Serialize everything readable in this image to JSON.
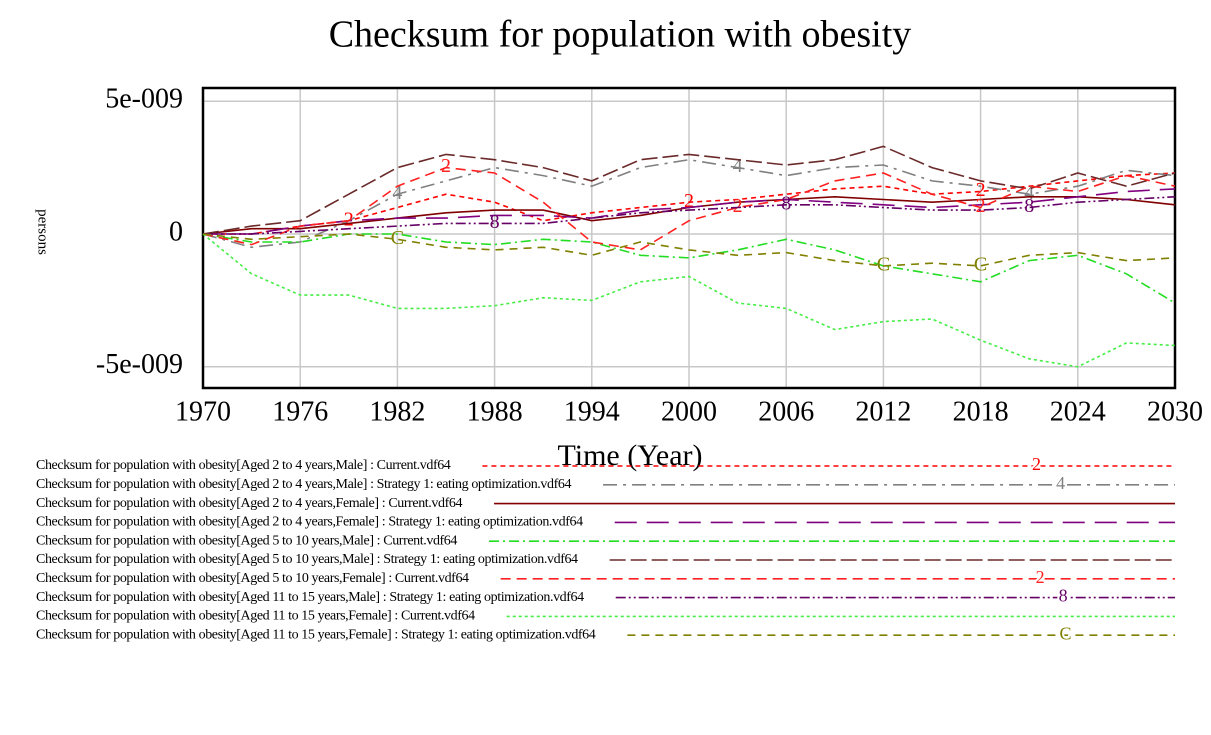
{
  "chart_data": {
    "type": "line",
    "title": "Checksum for population with obesity",
    "x_label": "Time (Year)",
    "y_label": "persons",
    "x": [
      1970,
      1973,
      1976,
      1979,
      1982,
      1985,
      1988,
      1991,
      1994,
      1997,
      2000,
      2003,
      2006,
      2009,
      2012,
      2015,
      2018,
      2021,
      2024,
      2027,
      2030
    ],
    "xlim": [
      1970,
      2030
    ],
    "xticks": [
      1970,
      1976,
      1982,
      1988,
      1994,
      2000,
      2006,
      2012,
      2018,
      2024,
      2030
    ],
    "ylim": [
      -5.8e-09,
      5.5e-09
    ],
    "yticks": [
      {
        "value": 5e-09,
        "label": "5e-009"
      },
      0,
      {
        "value": -5e-09,
        "label": "-5e-009"
      }
    ],
    "grid": true,
    "series": [
      {
        "name": "Checksum for population with obesity[Aged 2 to 4 years,Male] : Current.vdf64",
        "color": "#ff0000",
        "dash": "5,4",
        "marker": "2",
        "values": [
          0,
          0,
          3e-10,
          5e-10,
          1e-09,
          1.5e-09,
          1.2e-09,
          5e-10,
          8e-10,
          1e-09,
          1.2e-09,
          1.3e-09,
          1.5e-09,
          1.7e-09,
          1.8e-09,
          1.5e-09,
          1.6e-09,
          1.8e-09,
          2e-09,
          2.2e-09,
          2.3e-09
        ]
      },
      {
        "name": "Checksum for population with obesity[Aged 2 to 4 years,Male] : Strategy 1: eating optimization.vdf64",
        "color": "#808080",
        "dash": "14,6,3,6",
        "marker": "4",
        "values": [
          0,
          -5e-10,
          -3e-10,
          5e-10,
          1.5e-09,
          2e-09,
          2.5e-09,
          2.2e-09,
          1.8e-09,
          2.5e-09,
          2.8e-09,
          2.5e-09,
          2.2e-09,
          2.5e-09,
          2.6e-09,
          2e-09,
          1.8e-09,
          1.5e-09,
          1.8e-09,
          2.4e-09,
          2.2e-09
        ]
      },
      {
        "name": "Checksum for population with obesity[Aged 2 to 4 years,Female] : Current.vdf64",
        "color": "#800000",
        "dash": "none",
        "values": [
          0,
          2e-10,
          2e-10,
          4e-10,
          6e-10,
          8e-10,
          9e-10,
          9e-10,
          5e-10,
          7e-10,
          1e-09,
          1.2e-09,
          1.3e-09,
          1.4e-09,
          1.3e-09,
          1.2e-09,
          1.3e-09,
          1.4e-09,
          1.4e-09,
          1.3e-09,
          1.1e-09
        ]
      },
      {
        "name": "Checksum for population with obesity[Aged 2 to 4 years,Female] : Strategy 1: eating optimization.vdf64",
        "color": "#800080",
        "dash": "22,10",
        "values": [
          0,
          0,
          3e-10,
          5e-10,
          6e-10,
          6e-10,
          7e-10,
          7e-10,
          6e-10,
          9e-10,
          1e-09,
          1.2e-09,
          1.3e-09,
          1.2e-09,
          1.1e-09,
          1e-09,
          1.1e-09,
          1.2e-09,
          1.4e-09,
          1.6e-09,
          1.7e-09
        ]
      },
      {
        "name": "Checksum for population with obesity[Aged 5 to 10 years,Male] : Current.vdf64",
        "color": "#22dd22",
        "dash": "10,4,2,4",
        "values": [
          0,
          -3e-10,
          -3e-10,
          0,
          0,
          -3e-10,
          -4e-10,
          -2e-10,
          -3e-10,
          -8e-10,
          -9e-10,
          -6e-10,
          -2e-10,
          -6e-10,
          -1.2e-09,
          -1.5e-09,
          -1.8e-09,
          -1e-09,
          -8e-10,
          -1.5e-09,
          -2.6e-09
        ]
      },
      {
        "name": "Checksum for population with obesity[Aged 5 to 10 years,Male] : Strategy 1: eating optimization.vdf64",
        "color": "#6b2a2a",
        "dash": "16,5",
        "values": [
          0,
          3e-10,
          5e-10,
          1.5e-09,
          2.5e-09,
          3e-09,
          2.8e-09,
          2.5e-09,
          2e-09,
          2.8e-09,
          3e-09,
          2.8e-09,
          2.6e-09,
          2.8e-09,
          3.3e-09,
          2.5e-09,
          2e-09,
          1.7e-09,
          2.3e-09,
          1.8e-09,
          2.3e-09
        ]
      },
      {
        "name": "Checksum for population with obesity[Aged 5 to 10 years,Female] : Current.vdf64",
        "color": "#ff2020",
        "dash": "10,6",
        "marker": "2",
        "values": [
          0,
          -4e-10,
          3e-10,
          5e-10,
          1.8e-09,
          2.5e-09,
          2.3e-09,
          1.2e-09,
          -3e-10,
          -6e-10,
          5e-10,
          1e-09,
          1.3e-09,
          2e-09,
          2.3e-09,
          1.5e-09,
          1e-09,
          1.8e-09,
          1.6e-09,
          2.2e-09,
          1.8e-09
        ]
      },
      {
        "name": "Checksum for population with obesity[Aged 11 to 15 years,Male] : Strategy 1: eating optimization.vdf64",
        "color": "#660066",
        "dash": "10,3,2,3,2,3",
        "marker": "8",
        "values": [
          0,
          0,
          1e-10,
          2e-10,
          3e-10,
          4e-10,
          4e-10,
          4e-10,
          6e-10,
          8e-10,
          9e-10,
          1e-09,
          1.1e-09,
          1.1e-09,
          1e-09,
          9e-10,
          9e-10,
          1e-09,
          1.2e-09,
          1.3e-09,
          1.4e-09
        ]
      },
      {
        "name": "Checksum for population with obesity[Aged 11 to 15 years,Female] : Current.vdf64",
        "color": "#44ee44",
        "dash": "3,3",
        "values": [
          0,
          -1.5e-09,
          -2.3e-09,
          -2.3e-09,
          -2.8e-09,
          -2.8e-09,
          -2.7e-09,
          -2.4e-09,
          -2.5e-09,
          -1.8e-09,
          -1.6e-09,
          -2.6e-09,
          -2.8e-09,
          -3.6e-09,
          -3.3e-09,
          -3.2e-09,
          -4e-09,
          -4.7e-09,
          -5e-09,
          -4.1e-09,
          -4.2e-09
        ]
      },
      {
        "name": "Checksum for population with obesity[Aged 11 to 15 years,Female] : Strategy 1: eating optimization.vdf64",
        "color": "#808000",
        "dash": "8,6",
        "marker": "C",
        "values": [
          0,
          -2e-10,
          -1e-10,
          0,
          -2e-10,
          -5e-10,
          -6e-10,
          -5e-10,
          -8e-10,
          -3e-10,
          -6e-10,
          -8e-10,
          -7e-10,
          -1e-09,
          -1.2e-09,
          -1.1e-09,
          -1.2e-09,
          -8e-10,
          -7e-10,
          -1e-09,
          -9e-10
        ]
      }
    ]
  }
}
